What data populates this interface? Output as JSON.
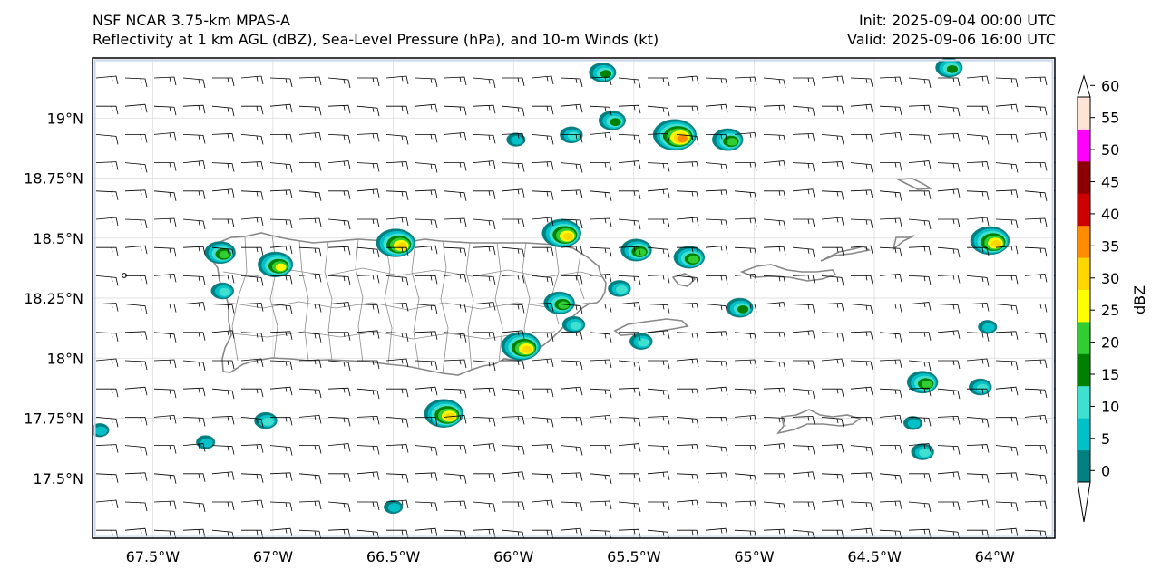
{
  "header": {
    "model": "NSF NCAR 3.75-km MPAS-A",
    "fields": "Reflectivity at 1 km AGL (dBZ), Sea-Level Pressure (hPa), and 10-m Winds (kt)",
    "init": "Init: 2025-09-04 00:00 UTC",
    "valid": "Valid: 2025-09-06 16:00 UTC"
  },
  "map": {
    "lon_range": [
      -67.75,
      -63.75
    ],
    "lat_range": [
      17.25,
      19.25
    ],
    "lon_ticks": [
      {
        "value": -67.5,
        "label": "67.5°W"
      },
      {
        "value": -67.0,
        "label": "67°W"
      },
      {
        "value": -66.5,
        "label": "66.5°W"
      },
      {
        "value": -66.0,
        "label": "66°W"
      },
      {
        "value": -65.5,
        "label": "65.5°W"
      },
      {
        "value": -65.0,
        "label": "65°W"
      },
      {
        "value": -64.5,
        "label": "64.5°W"
      },
      {
        "value": -64.0,
        "label": "64°W"
      }
    ],
    "lat_ticks": [
      {
        "value": 19.0,
        "label": "19°N"
      },
      {
        "value": 18.75,
        "label": "18.75°N"
      },
      {
        "value": 18.5,
        "label": "18.5°N"
      },
      {
        "value": 18.25,
        "label": "18.25°N"
      },
      {
        "value": 18.0,
        "label": "18°N"
      },
      {
        "value": 17.75,
        "label": "17.75°N"
      },
      {
        "value": 17.5,
        "label": "17.5°N"
      }
    ]
  },
  "colorbar": {
    "label": "dBZ",
    "levels": [
      {
        "label": "0",
        "color": "#008080"
      },
      {
        "label": "5",
        "color": "#00c0c8"
      },
      {
        "label": "10",
        "color": "#40e0d0"
      },
      {
        "label": "15",
        "color": "#008000"
      },
      {
        "label": "20",
        "color": "#32cd32"
      },
      {
        "label": "25",
        "color": "#ffff00"
      },
      {
        "label": "30",
        "color": "#ffd700"
      },
      {
        "label": "35",
        "color": "#ff8c00"
      },
      {
        "label": "40",
        "color": "#cc0000"
      },
      {
        "label": "45",
        "color": "#8b0000"
      },
      {
        "label": "50",
        "color": "#ff00ff"
      },
      {
        "label": "55",
        "color": "#ffe4d6"
      },
      {
        "label": "60",
        "color": "#ffffff"
      }
    ]
  },
  "cells": [
    {
      "lon": -65.63,
      "lat": 19.19,
      "peak": 15
    },
    {
      "lon": -64.19,
      "lat": 19.21,
      "peak": 15
    },
    {
      "lon": -65.59,
      "lat": 18.99,
      "peak": 15
    },
    {
      "lon": -65.33,
      "lat": 18.93,
      "peak": 35
    },
    {
      "lon": -65.11,
      "lat": 18.91,
      "peak": 20
    },
    {
      "lon": -65.99,
      "lat": 18.91,
      "peak": 5
    },
    {
      "lon": -65.76,
      "lat": 18.93,
      "peak": 10
    },
    {
      "lon": -67.22,
      "lat": 18.44,
      "peak": 20
    },
    {
      "lon": -66.99,
      "lat": 18.39,
      "peak": 25
    },
    {
      "lon": -67.21,
      "lat": 18.28,
      "peak": 10
    },
    {
      "lon": -66.49,
      "lat": 18.48,
      "peak": 30
    },
    {
      "lon": -65.8,
      "lat": 18.52,
      "peak": 30
    },
    {
      "lon": -65.49,
      "lat": 18.45,
      "peak": 20
    },
    {
      "lon": -65.27,
      "lat": 18.42,
      "peak": 20
    },
    {
      "lon": -64.02,
      "lat": 18.49,
      "peak": 30
    },
    {
      "lon": -65.56,
      "lat": 18.29,
      "peak": 10
    },
    {
      "lon": -65.81,
      "lat": 18.23,
      "peak": 20
    },
    {
      "lon": -65.06,
      "lat": 18.21,
      "peak": 15
    },
    {
      "lon": -65.75,
      "lat": 18.14,
      "peak": 10
    },
    {
      "lon": -65.47,
      "lat": 18.07,
      "peak": 10
    },
    {
      "lon": -65.97,
      "lat": 18.05,
      "peak": 30
    },
    {
      "lon": -64.3,
      "lat": 17.9,
      "peak": 20
    },
    {
      "lon": -64.06,
      "lat": 17.88,
      "peak": 10
    },
    {
      "lon": -66.29,
      "lat": 17.77,
      "peak": 30
    },
    {
      "lon": -67.03,
      "lat": 17.74,
      "peak": 10
    },
    {
      "lon": -67.72,
      "lat": 17.7,
      "peak": 5
    },
    {
      "lon": -67.28,
      "lat": 17.65,
      "peak": 5
    },
    {
      "lon": -64.34,
      "lat": 17.73,
      "peak": 5
    },
    {
      "lon": -64.3,
      "lat": 17.61,
      "peak": 10
    },
    {
      "lon": -66.5,
      "lat": 17.38,
      "peak": 5
    },
    {
      "lon": -64.03,
      "lat": 18.13,
      "peak": 5
    }
  ]
}
